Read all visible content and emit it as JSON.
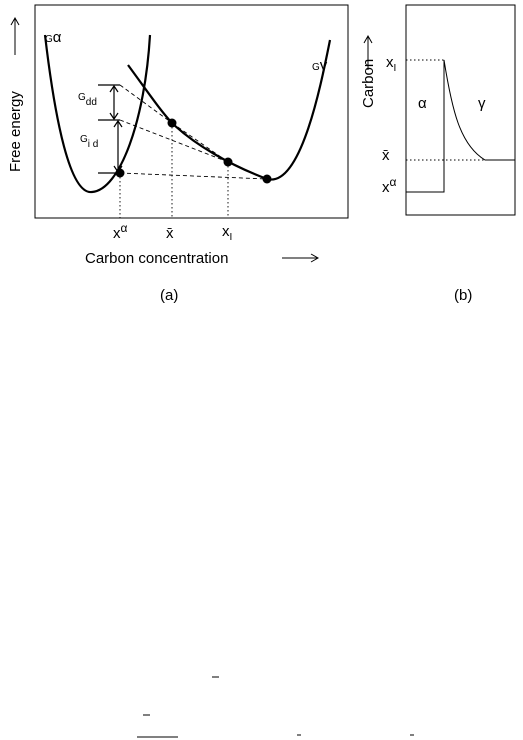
{
  "panel_a": {
    "y_label": "Free energy",
    "x_label": "Carbon concentration",
    "caption": "(a)",
    "curve_alpha": {
      "base": "G",
      "sub": "α"
    },
    "curve_gamma": {
      "base": "G",
      "sub": "γ"
    },
    "g_dd": {
      "base": "G",
      "sub": "dd"
    },
    "g_id": {
      "base": "G",
      "sub": "i d"
    },
    "x_alpha": {
      "base": "x",
      "sup": "α"
    },
    "x_bar": "x̄",
    "x_i": {
      "base": "x",
      "sub": "I"
    }
  },
  "panel_b": {
    "y_label": "Carbon",
    "caption": "(b)",
    "phase_alpha": "α",
    "phase_gamma": "γ",
    "x_i": {
      "base": "x",
      "sub": "I"
    },
    "x_bar": "x̄",
    "x_alpha": {
      "base": "x",
      "sup": "α"
    }
  }
}
